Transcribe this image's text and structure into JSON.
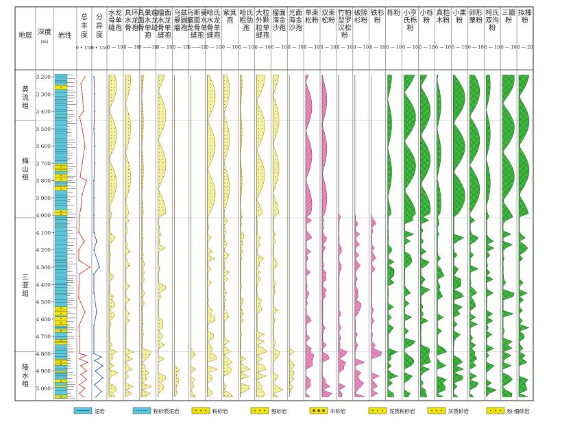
{
  "headers": {
    "formation": "地层",
    "depth": [
      "深度",
      "(m)"
    ],
    "lithology": "岩性",
    "abundance": [
      "总",
      "丰",
      "度"
    ],
    "diversity": [
      "分",
      "异",
      "度"
    ],
    "abundance_scale": "0 • 150",
    "diversity_scale": "0 • 150"
  },
  "depth_ticks": [
    "3 200",
    "3 300",
    "3 400",
    "3 500",
    "3 600",
    "3 700",
    "3 800",
    "3 900",
    "4 000",
    "4 100",
    "4 200",
    "4 300",
    "4 400",
    "4 500",
    "4 600",
    "4 700",
    "4 800",
    "4 900",
    "5 000"
  ],
  "formations": [
    {
      "name": [
        "黄",
        "流",
        "组"
      ],
      "top": 3185,
      "bottom": 3450
    },
    {
      "name": [
        "梅",
        "山",
        "组"
      ],
      "top": 3450,
      "bottom": 4015
    },
    {
      "name": [
        "三",
        "亚",
        "组"
      ],
      "top": 4015,
      "bottom": 4790
    },
    {
      "name": [
        "陵",
        "水",
        "组"
      ],
      "top": 4790,
      "bottom": 5060
    }
  ],
  "taxa": [
    {
      "name": [
        "水龙",
        "骨单",
        "缝孢"
      ],
      "scale": "0 — 10",
      "color": "#f5f0a0",
      "pattern": "dots"
    },
    {
      "name": [
        "具环",
        "水龙",
        "骨孢"
      ],
      "scale": "0 — 10",
      "color": "#f5f0a0",
      "pattern": "dots"
    },
    {
      "name": [
        "具巢瘤",
        "面水龙",
        "骨单缝",
        "孢"
      ],
      "scale": "0 ——10",
      "color": "#f5f0a0",
      "pattern": "dots"
    },
    {
      "name": [
        "瘤面",
        "水龙",
        "骨单",
        "缝孢"
      ],
      "scale": "0 — 10",
      "color": "#f5f0a0",
      "pattern": "dots"
    },
    {
      "name": [
        "乌兹",
        "曼圆",
        "瘤孢"
      ],
      "scale": "0 — 10",
      "color": "#f5f0a0",
      "pattern": "dots"
    },
    {
      "name": [
        "乌斯曼",
        "瘤面水",
        "龙骨单",
        "缝孢"
      ],
      "scale": "0 ——10",
      "color": "#f5f0a0",
      "pattern": "dots"
    },
    {
      "name": [
        "哈氏",
        "水龙",
        "骨单",
        "缝孢"
      ],
      "scale": "0 — 10",
      "color": "#f5f0a0",
      "pattern": "dots"
    },
    {
      "name": [
        "紫萁",
        "孢"
      ],
      "scale": "0 — 10",
      "color": "#f5f0a0",
      "pattern": "dots"
    },
    {
      "name": [
        "哈氏",
        "粗肋",
        "孢"
      ],
      "scale": "0 — 10",
      "color": "#f5f0a0",
      "pattern": "dots"
    },
    {
      "name": [
        "大粒",
        "外颗",
        "粒单",
        "缝孢"
      ],
      "scale": "0 — 10",
      "color": "#f5f0a0",
      "pattern": "dots"
    },
    {
      "name": [
        "瘤面",
        "海金",
        "沙孢"
      ],
      "scale": "0 — 10",
      "color": "#f5f0a0",
      "pattern": "dots"
    },
    {
      "name": [
        "光面",
        "海金",
        "沙孢"
      ],
      "scale": "0 — 10",
      "color": "#f5f0a0",
      "pattern": "dots"
    },
    {
      "name": [
        "单束",
        "松粉"
      ],
      "scale": "0 — 10",
      "color": "#e98cc0",
      "pattern": "lines"
    },
    {
      "name": [
        "双束",
        "松粉"
      ],
      "scale": "0 — 10",
      "color": "#e98cc0",
      "pattern": "lines"
    },
    {
      "name": [
        "竹柏",
        "型罗",
        "汉松",
        "粉"
      ],
      "scale": "0 — 10",
      "color": "#e98cc0",
      "pattern": "lines"
    },
    {
      "name": [
        "破隙",
        "杉粉"
      ],
      "scale": "0 — 10",
      "color": "#e98cc0",
      "pattern": "lines"
    },
    {
      "name": [
        "铁杉",
        "粉"
      ],
      "scale": "0 — 10",
      "color": "#e98cc0",
      "pattern": "lines"
    },
    {
      "name": [
        "栎粉"
      ],
      "scale": "0 — 10",
      "color": "#3dba3d",
      "pattern": "cross"
    },
    {
      "name": [
        "小亨",
        "氏栎",
        "粉"
      ],
      "scale": "0 — 10",
      "color": "#3dba3d",
      "pattern": "cross"
    },
    {
      "name": [
        "小栎",
        "粉"
      ],
      "scale": "0 — 10",
      "color": "#3dba3d",
      "pattern": "cross"
    },
    {
      "name": [
        "真桤",
        "木粉"
      ],
      "scale": "0 — 10",
      "color": "#3dba3d",
      "pattern": "cross"
    },
    {
      "name": [
        "小栗",
        "粉"
      ],
      "scale": "0 — 10",
      "color": "#3dba3d",
      "pattern": "cross"
    },
    {
      "name": [
        "卵形",
        "栗粉"
      ],
      "scale": "0 — 10",
      "color": "#3dba3d",
      "pattern": "cross"
    },
    {
      "name": [
        "柯氏",
        "双沟",
        "粉"
      ],
      "scale": "0 — 10",
      "color": "#3dba3d",
      "pattern": "cross"
    },
    {
      "name": [
        "三瓣",
        "粉"
      ],
      "scale": "0 — 10",
      "color": "#3dba3d",
      "pattern": "cross"
    },
    {
      "name": [
        "拟榛",
        "粉"
      ],
      "scale": "0 — 20",
      "color": "#3dba3d",
      "pattern": "cross"
    }
  ],
  "legend": [
    {
      "key": "mudstone",
      "label": "泥岩"
    },
    {
      "key": "silty_mudstone",
      "label": "粉砂质泥岩"
    },
    {
      "key": "siltstone",
      "label": "粉砂岩"
    },
    {
      "key": "fine_sandstone",
      "label": "细砂岩"
    },
    {
      "key": "medium_sandstone",
      "label": "中砂岩"
    },
    {
      "key": "muddy_siltstone",
      "label": "泥质粉砂岩"
    },
    {
      "key": "calcareous_sandstone",
      "label": "灰质砂岩"
    },
    {
      "key": "silt_fine_sandstone",
      "label": "粉-细砂岩"
    }
  ],
  "colors": {
    "mudstone": "#5cc8dc",
    "sandstone": "#f2e600",
    "abundance_line": "#d42020",
    "diversity_line": "#1a3ca0",
    "diversity_line2": "#7a2a9a"
  }
}
